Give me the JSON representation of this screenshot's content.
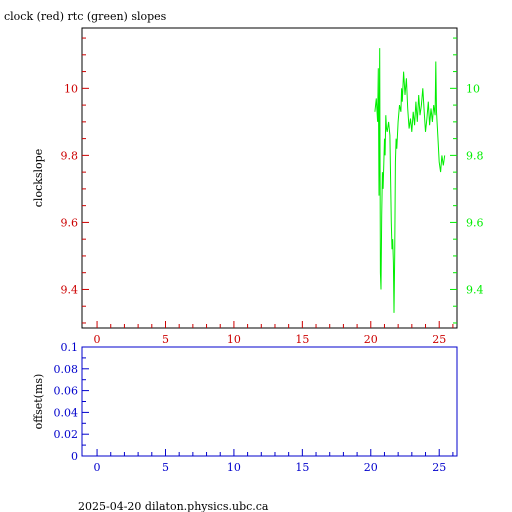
{
  "title": "clock (red) rtc (green) slopes",
  "footer": "2025-04-20  dilaton.physics.ubc.ca",
  "colors": {
    "red": "#cc0000",
    "green": "#00ee00",
    "blue": "#0000cc",
    "black": "#000000"
  },
  "chart_data": [
    {
      "type": "line",
      "title": "clock (red) rtc (green) slopes",
      "ylabel": "clockslope",
      "xlim": [
        -1.1,
        26.3
      ],
      "ylim": [
        9.285,
        10.18
      ],
      "x_ticks": [
        0,
        5,
        10,
        15,
        20,
        25
      ],
      "x_tick_labels": [
        "0",
        "5",
        "10",
        "15",
        "20",
        "25"
      ],
      "y_ticks": [
        9.4,
        9.6,
        9.8,
        10
      ],
      "y_tick_labels_left": [
        "9.4",
        "9.6",
        "9.8",
        "10"
      ],
      "y_tick_labels_right": [
        "9.4",
        "9.6",
        "9.8",
        "10"
      ],
      "series": [
        {
          "color": "#00ee00",
          "points": [
            [
              20.3,
              9.93
            ],
            [
              20.4,
              9.97
            ],
            [
              20.5,
              9.9
            ],
            [
              20.55,
              10.06
            ],
            [
              20.6,
              9.68
            ],
            [
              20.65,
              10.12
            ],
            [
              20.7,
              9.45
            ],
            [
              20.75,
              9.4
            ],
            [
              20.8,
              9.62
            ],
            [
              20.85,
              9.75
            ],
            [
              20.9,
              9.7
            ],
            [
              21.0,
              9.85
            ],
            [
              21.05,
              9.8
            ],
            [
              21.1,
              9.92
            ],
            [
              21.15,
              9.88
            ],
            [
              21.2,
              9.87
            ],
            [
              21.3,
              9.9
            ],
            [
              21.4,
              9.86
            ],
            [
              21.5,
              9.6
            ],
            [
              21.55,
              9.52
            ],
            [
              21.6,
              9.55
            ],
            [
              21.65,
              9.48
            ],
            [
              21.7,
              9.33
            ],
            [
              21.75,
              9.5
            ],
            [
              21.8,
              9.78
            ],
            [
              21.85,
              9.85
            ],
            [
              21.9,
              9.82
            ],
            [
              22.0,
              9.9
            ],
            [
              22.1,
              9.95
            ],
            [
              22.2,
              9.93
            ],
            [
              22.25,
              10.0
            ],
            [
              22.3,
              9.96
            ],
            [
              22.4,
              10.05
            ],
            [
              22.5,
              9.98
            ],
            [
              22.6,
              10.03
            ],
            [
              22.7,
              9.94
            ],
            [
              22.8,
              9.88
            ],
            [
              22.9,
              9.91
            ],
            [
              23.0,
              9.87
            ],
            [
              23.1,
              9.93
            ],
            [
              23.2,
              9.89
            ],
            [
              23.3,
              9.96
            ],
            [
              23.4,
              9.9
            ],
            [
              23.5,
              9.98
            ],
            [
              23.6,
              9.92
            ],
            [
              23.7,
              9.95
            ],
            [
              23.8,
              10.0
            ],
            [
              23.9,
              9.93
            ],
            [
              24.0,
              9.87
            ],
            [
              24.1,
              9.91
            ],
            [
              24.2,
              9.96
            ],
            [
              24.3,
              9.89
            ],
            [
              24.4,
              9.94
            ],
            [
              24.5,
              9.9
            ],
            [
              24.6,
              9.95
            ],
            [
              24.7,
              9.92
            ],
            [
              24.75,
              10.08
            ],
            [
              24.8,
              9.93
            ],
            [
              24.9,
              9.86
            ],
            [
              25.0,
              9.78
            ],
            [
              25.1,
              9.75
            ],
            [
              25.2,
              9.8
            ],
            [
              25.3,
              9.77
            ],
            [
              25.4,
              9.8
            ]
          ]
        }
      ]
    },
    {
      "type": "line",
      "ylabel": "offset(ms)",
      "xlim": [
        -1.1,
        26.3
      ],
      "ylim": [
        0,
        0.1
      ],
      "x_ticks": [
        0,
        5,
        10,
        15,
        20,
        25
      ],
      "x_tick_labels": [
        "0",
        "5",
        "10",
        "15",
        "20",
        "25"
      ],
      "y_ticks": [
        0,
        0.02,
        0.04,
        0.06,
        0.08,
        0.1
      ],
      "y_tick_labels": [
        "0",
        "0.02",
        "0.04",
        "0.06",
        "0.08",
        "0.1"
      ],
      "series": []
    }
  ]
}
